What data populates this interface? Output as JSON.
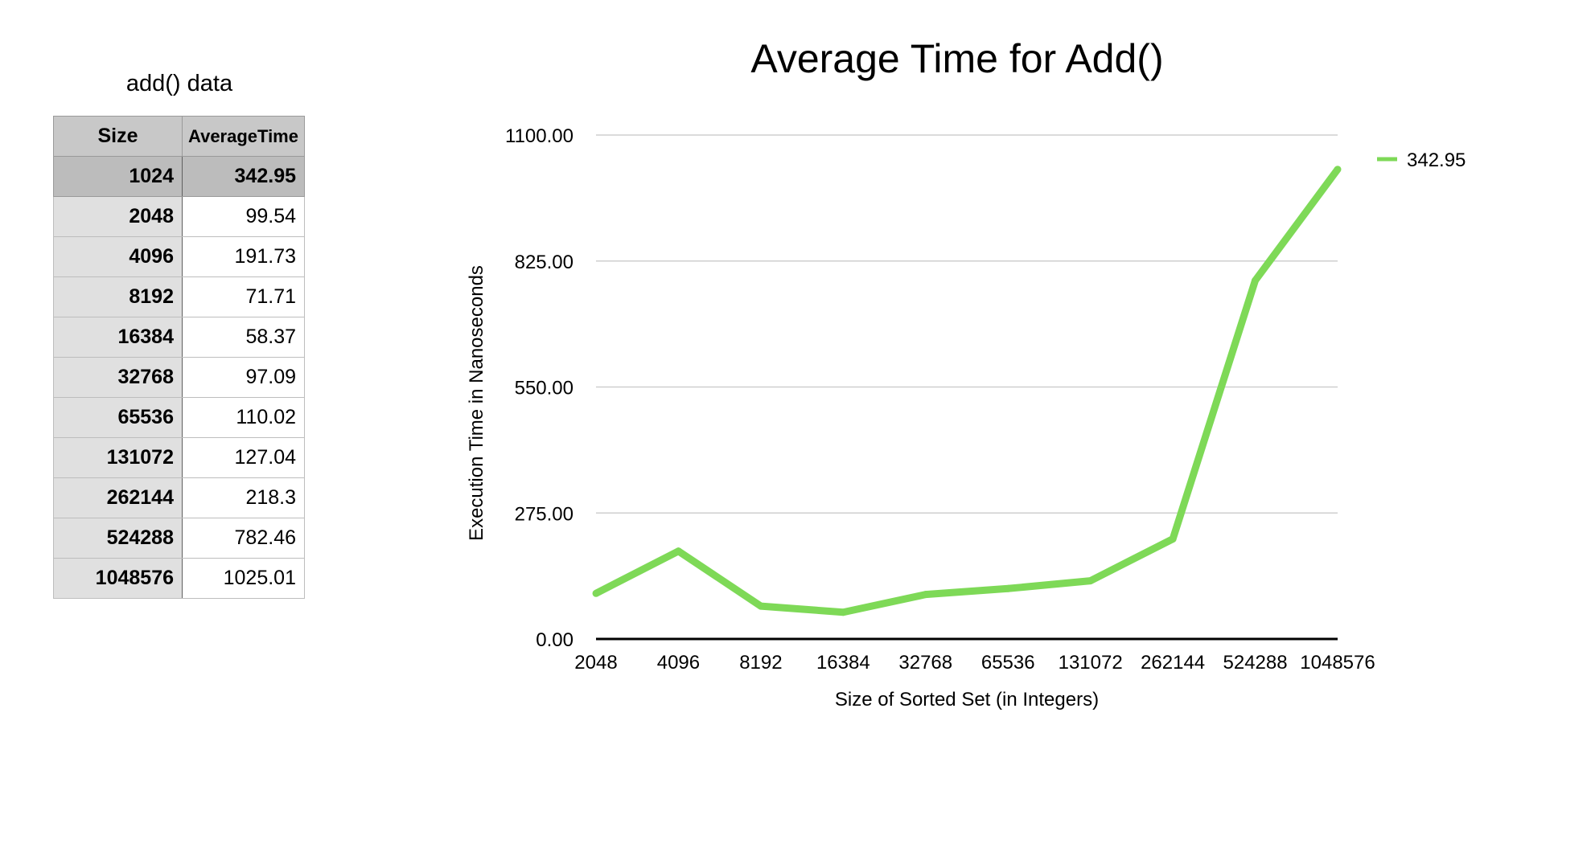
{
  "table": {
    "title": "add() data",
    "headers": [
      "Size",
      "AverageTime"
    ],
    "header_row": {
      "size": "1024",
      "time": "342.95"
    },
    "rows": [
      {
        "size": "2048",
        "time": "99.54"
      },
      {
        "size": "4096",
        "time": "191.73"
      },
      {
        "size": "8192",
        "time": "71.71"
      },
      {
        "size": "16384",
        "time": "58.37"
      },
      {
        "size": "32768",
        "time": "97.09"
      },
      {
        "size": "65536",
        "time": "110.02"
      },
      {
        "size": "131072",
        "time": "127.04"
      },
      {
        "size": "262144",
        "time": "218.3"
      },
      {
        "size": "524288",
        "time": "782.46"
      },
      {
        "size": "1048576",
        "time": "1025.01"
      }
    ]
  },
  "chart_data": {
    "type": "line",
    "title": "Average Time for Add()",
    "xlabel": "Size of Sorted Set (in Integers)",
    "ylabel": "Execution Time in Nanoseconds",
    "categories": [
      "2048",
      "4096",
      "8192",
      "16384",
      "32768",
      "65536",
      "131072",
      "262144",
      "524288",
      "1048576"
    ],
    "series": [
      {
        "name": "342.95",
        "color": "#7ed957",
        "values": [
          99.54,
          191.73,
          71.71,
          58.37,
          97.09,
          110.02,
          127.04,
          218.3,
          782.46,
          1025.01
        ]
      }
    ],
    "yticks": [
      "0.00",
      "275.00",
      "550.00",
      "825.00",
      "1100.00"
    ],
    "ylim": [
      0,
      1100
    ],
    "grid": true,
    "legend": "top-right"
  }
}
